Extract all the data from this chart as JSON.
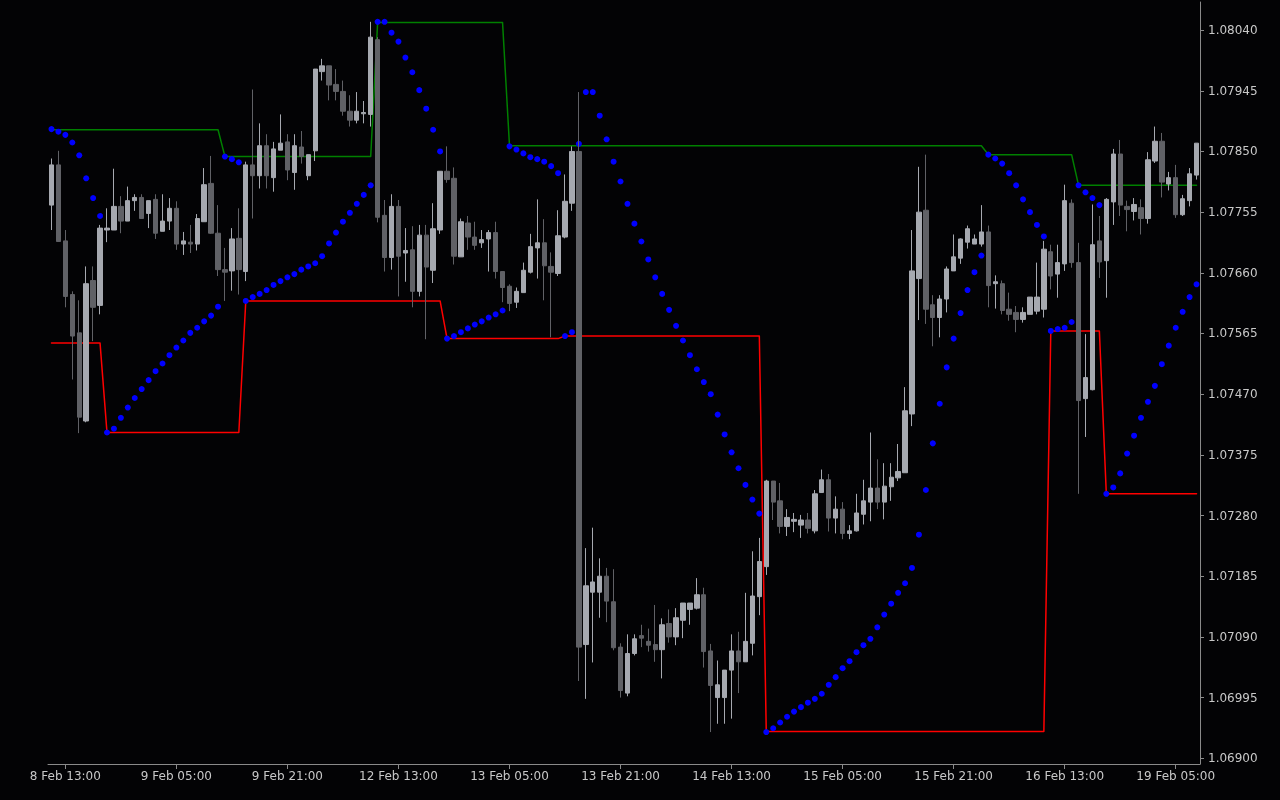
{
  "chart_data": {
    "type": "candlestick",
    "categories": [
      null,
      null,
      "8 Feb 13:00",
      null,
      null,
      null,
      null,
      null,
      null,
      null,
      null,
      null,
      null,
      null,
      null,
      null,
      null,
      null,
      "9 Feb 05:00",
      null,
      null,
      null,
      null,
      null,
      null,
      null,
      null,
      null,
      null,
      null,
      null,
      null,
      null,
      null,
      "9 Feb 21:00",
      null,
      null,
      null,
      null,
      null,
      null,
      null,
      null,
      null,
      null,
      null,
      null,
      null,
      null,
      null,
      "12 Feb 13:00",
      null,
      null,
      null,
      null,
      null,
      null,
      null,
      null,
      null,
      null,
      null,
      null,
      null,
      null,
      null,
      "13 Feb 05:00",
      null,
      null,
      null,
      null,
      null,
      null,
      null,
      null,
      null,
      null,
      null,
      null,
      null,
      null,
      null,
      "13 Feb 21:00",
      null,
      null,
      null,
      null,
      null,
      null,
      null,
      null,
      null,
      null,
      null,
      null,
      null,
      null,
      null,
      "14 Feb 13:00",
      null,
      null,
      null,
      null,
      null,
      null,
      null,
      null,
      null,
      null,
      null,
      null,
      null,
      null,
      null,
      "15 Feb 05:00",
      null,
      null,
      null,
      null,
      null,
      null,
      null,
      null,
      null,
      null,
      null,
      null,
      null,
      null,
      null,
      "15 Feb 21:00",
      null,
      null,
      null,
      null,
      null,
      null,
      null,
      null,
      null,
      null,
      null,
      null,
      null,
      null,
      null,
      "16 Feb 13:00",
      null,
      null,
      null,
      null,
      null,
      null,
      null,
      null,
      null,
      null,
      null,
      null,
      null,
      null,
      null,
      "19 Feb 05:00",
      null,
      null,
      null
    ],
    "ylim": [
      1.06891,
      1.08084
    ],
    "yticks": [
      {
        "value": 1.069,
        "label": "1.06900"
      },
      {
        "value": 1.06995,
        "label": "1.06995"
      },
      {
        "value": 1.0709,
        "label": "1.07090"
      },
      {
        "value": 1.07185,
        "label": "1.07185"
      },
      {
        "value": 1.0728,
        "label": "1.07280"
      },
      {
        "value": 1.07375,
        "label": "1.07375"
      },
      {
        "value": 1.0747,
        "label": "1.07470"
      },
      {
        "value": 1.07565,
        "label": "1.07565"
      },
      {
        "value": 1.0766,
        "label": "1.07660"
      },
      {
        "value": 1.07755,
        "label": "1.07755"
      },
      {
        "value": 1.0785,
        "label": "1.07850"
      },
      {
        "value": 1.07945,
        "label": "1.07945"
      },
      {
        "value": 1.0804,
        "label": "1.08040"
      }
    ],
    "series": [
      {
        "type": "line",
        "color": "#008000",
        "marker": "none",
        "values": [
          1.07884,
          1.07884,
          1.07884,
          1.07884,
          1.07884,
          1.07884,
          1.07884,
          1.07884,
          1.07884,
          1.07884,
          1.07884,
          1.07884,
          1.07884,
          1.07884,
          1.07884,
          1.07884,
          1.07884,
          1.07884,
          1.07884,
          1.07884,
          1.07884,
          1.07884,
          1.07884,
          1.07884,
          1.07884,
          1.07842,
          1.07842,
          1.07842,
          1.07842,
          1.07842,
          1.07842,
          1.07842,
          1.07842,
          1.07842,
          1.07842,
          1.07842,
          1.07842,
          1.07842,
          1.07842,
          1.07842,
          1.07842,
          1.07842,
          1.07842,
          1.07842,
          1.07842,
          1.07842,
          1.07842,
          1.08052,
          1.08052,
          1.08052,
          1.08052,
          1.08052,
          1.08052,
          1.08052,
          1.08052,
          1.08052,
          1.08052,
          1.08052,
          1.08052,
          1.08052,
          1.08052,
          1.08052,
          1.08052,
          1.08052,
          1.08052,
          1.08052,
          1.07859,
          1.07859,
          1.07859,
          1.07859,
          1.07859,
          1.07859,
          1.07859,
          1.07859,
          1.07859,
          1.07859,
          1.07859,
          1.07859,
          1.07859,
          1.07859,
          1.07859,
          1.07859,
          1.07859,
          1.07859,
          1.07859,
          1.07859,
          1.07859,
          1.07859,
          1.07859,
          1.07859,
          1.07859,
          1.07859,
          1.07859,
          1.07859,
          1.07859,
          1.07859,
          1.07859,
          1.07859,
          1.07859,
          1.07859,
          1.07859,
          1.07859,
          1.07859,
          1.07859,
          1.07859,
          1.07859,
          1.07859,
          1.07859,
          1.07859,
          1.07859,
          1.07859,
          1.07859,
          1.07859,
          1.07859,
          1.07859,
          1.07859,
          1.07859,
          1.07859,
          1.07859,
          1.07859,
          1.07859,
          1.07859,
          1.07859,
          1.07859,
          1.07859,
          1.07859,
          1.07859,
          1.07859,
          1.07859,
          1.07859,
          1.07859,
          1.07859,
          1.07859,
          1.07859,
          1.07859,
          1.07845,
          1.07845,
          1.07845,
          1.07845,
          1.07845,
          1.07845,
          1.07845,
          1.07845,
          1.07845,
          1.07845,
          1.07845,
          1.07845,
          1.07845,
          1.07797,
          1.07797,
          1.07797,
          1.07797,
          1.07797,
          1.07797,
          1.07797,
          1.07797,
          1.07797,
          1.07797,
          1.07797,
          1.07797,
          1.07797,
          1.07797,
          1.07797,
          1.07797,
          1.07797,
          1.07797
        ]
      },
      {
        "type": "line",
        "color": "#ff0000",
        "marker": "none",
        "values": [
          1.0755,
          1.0755,
          1.0755,
          1.0755,
          1.0755,
          1.0755,
          1.0755,
          1.0755,
          1.0741,
          1.0741,
          1.0741,
          1.0741,
          1.0741,
          1.0741,
          1.0741,
          1.0741,
          1.0741,
          1.0741,
          1.0741,
          1.0741,
          1.0741,
          1.0741,
          1.0741,
          1.0741,
          1.0741,
          1.0741,
          1.0741,
          1.0741,
          1.07616,
          1.07616,
          1.07616,
          1.07616,
          1.07616,
          1.07616,
          1.07616,
          1.07616,
          1.07616,
          1.07616,
          1.07616,
          1.07616,
          1.07616,
          1.07616,
          1.07616,
          1.07616,
          1.07616,
          1.07616,
          1.07616,
          1.07616,
          1.07616,
          1.07616,
          1.07616,
          1.07616,
          1.07616,
          1.07616,
          1.07616,
          1.07616,
          1.07616,
          1.07557,
          1.07557,
          1.07557,
          1.07557,
          1.07557,
          1.07557,
          1.07557,
          1.07557,
          1.07557,
          1.07557,
          1.07557,
          1.07557,
          1.07557,
          1.07557,
          1.07557,
          1.07557,
          1.07557,
          1.07561,
          1.07561,
          1.07561,
          1.07561,
          1.07561,
          1.07561,
          1.07561,
          1.07561,
          1.07561,
          1.07561,
          1.07561,
          1.07561,
          1.07561,
          1.07561,
          1.07561,
          1.07561,
          1.07561,
          1.07561,
          1.07561,
          1.07561,
          1.07561,
          1.07561,
          1.07561,
          1.07561,
          1.07561,
          1.07561,
          1.07561,
          1.07561,
          1.07561,
          1.06942,
          1.06942,
          1.06942,
          1.06942,
          1.06942,
          1.06942,
          1.06942,
          1.06942,
          1.06942,
          1.06942,
          1.06942,
          1.06942,
          1.06942,
          1.06942,
          1.06942,
          1.06942,
          1.06942,
          1.06942,
          1.06942,
          1.06942,
          1.06942,
          1.06942,
          1.06942,
          1.06942,
          1.06942,
          1.06942,
          1.06942,
          1.06942,
          1.06942,
          1.06942,
          1.06942,
          1.06942,
          1.06942,
          1.06942,
          1.06942,
          1.06942,
          1.06942,
          1.06942,
          1.06942,
          1.06942,
          1.06942,
          1.07569,
          1.07569,
          1.07569,
          1.07569,
          1.07569,
          1.07569,
          1.07569,
          1.07569,
          1.07314,
          1.07314,
          1.07314,
          1.07314,
          1.07314,
          1.07314,
          1.07314,
          1.07314,
          1.07314,
          1.07314,
          1.07314,
          1.07314,
          1.07314,
          1.07314
        ]
      },
      {
        "type": "scatter",
        "color": "#0000ff",
        "marker": "circle",
        "values": [
          1.07885,
          1.07881,
          1.07876,
          1.07864,
          1.07844,
          1.07808,
          1.07777,
          1.07749,
          1.0741,
          1.07416,
          1.07433,
          1.07449,
          1.07464,
          1.07478,
          1.07492,
          1.07506,
          1.07518,
          1.07531,
          1.07543,
          1.07554,
          1.07566,
          1.07574,
          1.07584,
          1.07593,
          1.07607,
          1.07842,
          1.07838,
          1.07833,
          1.07616,
          1.07622,
          1.07627,
          1.07633,
          1.07641,
          1.07647,
          1.07653,
          1.07658,
          1.07665,
          1.0767,
          1.07675,
          1.07686,
          1.07706,
          1.07723,
          1.0774,
          1.07754,
          1.07768,
          1.07782,
          1.07797,
          1.08053,
          1.08053,
          1.08036,
          1.08022,
          1.07997,
          1.07974,
          1.07946,
          1.07917,
          1.07884,
          1.0785,
          1.07557,
          1.07561,
          1.07567,
          1.07573,
          1.07579,
          1.07584,
          1.0759,
          1.07595,
          1.07601,
          1.07858,
          1.07853,
          1.07847,
          1.07841,
          1.07838,
          1.07834,
          1.07827,
          1.07816,
          1.07561,
          1.07567,
          1.07862,
          1.07943,
          1.07943,
          1.07906,
          1.07869,
          1.07834,
          1.07803,
          1.07768,
          1.07737,
          1.07709,
          1.07681,
          1.07653,
          1.07627,
          1.07602,
          1.07577,
          1.07554,
          1.07531,
          1.07509,
          1.07489,
          1.0747,
          1.07438,
          1.07407,
          1.07379,
          1.07354,
          1.07328,
          1.07305,
          1.07283,
          1.06941,
          1.06947,
          1.06956,
          1.06965,
          1.06973,
          1.0698,
          1.06987,
          1.06993,
          1.07001,
          1.07015,
          1.07027,
          1.07041,
          1.07052,
          1.07066,
          1.07077,
          1.07087,
          1.07105,
          1.07125,
          1.07142,
          1.07159,
          1.07174,
          1.07198,
          1.0725,
          1.0732,
          1.07393,
          1.07455,
          1.07512,
          1.07557,
          1.07597,
          1.07633,
          1.07661,
          1.07687,
          1.07845,
          1.07839,
          1.07831,
          1.07816,
          1.07797,
          1.07775,
          1.07755,
          1.07735,
          1.07717,
          1.07569,
          1.07572,
          1.07574,
          1.07583,
          1.07797,
          1.07786,
          1.07777,
          1.07766,
          1.07314,
          1.07324,
          1.07346,
          1.07377,
          1.07405,
          1.07433,
          1.07458,
          1.07483,
          1.07517,
          1.07546,
          1.07574,
          1.07599,
          1.07622,
          1.07642
        ]
      },
      {
        "type": "candlestick",
        "colors": [
          "#a6a9b0",
          "#606166",
          "#606166",
          "#606166",
          "#606166",
          "#a6a9b0",
          "#606166",
          "#a6a9b0",
          "#a6a9b0",
          "#a6a9b0",
          "#606166",
          "#a6a9b0",
          "#a6a9b0",
          "#606166",
          "#a6a9b0",
          "#606166",
          "#a6a9b0",
          "#a6a9b0",
          "#606166",
          "#a6a9b0",
          "#606166",
          "#a6a9b0",
          "#a6a9b0",
          "#606166",
          "#606166",
          "#606166",
          "#a6a9b0",
          "#606166",
          "#a6a9b0",
          "#606166",
          "#a6a9b0",
          "#606166",
          "#a6a9b0",
          "#a6a9b0",
          "#606166",
          "#a6a9b0",
          "#606166",
          "#a6a9b0",
          "#a6a9b0",
          "#a6a9b0",
          "#606166",
          "#606166",
          "#606166",
          "#606166",
          "#a6a9b0",
          "#a6a9b0",
          "#a6a9b0",
          "#606166",
          "#606166",
          "#a6a9b0",
          "#606166",
          "#a6a9b0",
          "#606166",
          "#a6a9b0",
          "#606166",
          "#a6a9b0",
          "#a6a9b0",
          "#606166",
          "#606166",
          "#a6a9b0",
          "#606166",
          "#606166",
          "#a6a9b0",
          "#a6a9b0",
          "#606166",
          "#606166",
          "#606166",
          "#a6a9b0",
          "#a6a9b0",
          "#a6a9b0",
          "#a6a9b0",
          "#606166",
          "#606166",
          "#a6a9b0",
          "#a6a9b0",
          "#a6a9b0",
          "#606166",
          "#a6a9b0",
          "#a6a9b0",
          "#a6a9b0",
          "#606166",
          "#606166",
          "#606166",
          "#a6a9b0",
          "#a6a9b0",
          "#606166",
          "#606166",
          "#606166",
          "#a6a9b0",
          "#606166",
          "#a6a9b0",
          "#a6a9b0",
          "#a6a9b0",
          "#a6a9b0",
          "#606166",
          "#606166",
          "#a6a9b0",
          "#a6a9b0",
          "#a6a9b0",
          "#606166",
          "#a6a9b0",
          "#a6a9b0",
          "#a6a9b0",
          "#a6a9b0",
          "#606166",
          "#606166",
          "#a6a9b0",
          "#a6a9b0",
          "#a6a9b0",
          "#606166",
          "#a6a9b0",
          "#a6a9b0",
          "#606166",
          "#a6a9b0",
          "#606166",
          "#a6a9b0",
          "#a6a9b0",
          "#a6a9b0",
          "#a6a9b0",
          "#606166",
          "#a6a9b0",
          "#a6a9b0",
          "#a6a9b0",
          "#a6a9b0",
          "#a6a9b0",
          "#a6a9b0",
          "#606166",
          "#606166",
          "#a6a9b0",
          "#a6a9b0",
          "#a6a9b0",
          "#a6a9b0",
          "#a6a9b0",
          "#a6a9b0",
          "#a6a9b0",
          "#606166",
          "#a6a9b0",
          "#606166",
          "#606166",
          "#606166",
          "#a6a9b0",
          "#a6a9b0",
          "#a6a9b0",
          "#a6a9b0",
          "#606166",
          "#a6a9b0",
          "#a6a9b0",
          "#606166",
          "#606166",
          "#a6a9b0",
          "#a6a9b0",
          "#606166",
          "#a6a9b0",
          "#a6a9b0",
          "#606166",
          "#606166",
          "#a6a9b0",
          "#606166",
          "#a6a9b0",
          "#a6a9b0",
          "#606166",
          "#a6a9b0",
          "#606166",
          "#a6a9b0",
          "#a6a9b0",
          "#a6a9b0"
        ],
        "ohlc": [
          [
            1.07766,
            1.07839,
            1.07727,
            1.07829
          ],
          [
            1.07829,
            1.07851,
            1.07709,
            1.07709
          ],
          [
            1.0771,
            1.07727,
            1.07606,
            1.07623
          ],
          [
            1.07626,
            1.07631,
            1.07493,
            1.07561
          ],
          [
            1.07566,
            1.07617,
            1.07409,
            1.07434
          ],
          [
            1.07428,
            1.0767,
            1.07426,
            1.07643
          ],
          [
            1.07648,
            1.0767,
            1.07553,
            1.07606
          ],
          [
            1.07609,
            1.07735,
            1.07595,
            1.0773
          ],
          [
            1.07727,
            1.07761,
            1.07708,
            1.0773
          ],
          [
            1.07727,
            1.07823,
            1.07727,
            1.07764
          ],
          [
            1.07764,
            1.0778,
            1.07722,
            1.07741
          ],
          [
            1.07741,
            1.07795,
            1.07741,
            1.07773
          ],
          [
            1.07773,
            1.07783,
            1.07757,
            1.07778
          ],
          [
            1.07778,
            1.07783,
            1.07745,
            1.07745
          ],
          [
            1.07753,
            1.07773,
            1.0773,
            1.07773
          ],
          [
            1.07775,
            1.07783,
            1.07713,
            1.07722
          ],
          [
            1.07725,
            1.07783,
            1.07725,
            1.07741
          ],
          [
            1.07741,
            1.07777,
            1.07727,
            1.07761
          ],
          [
            1.07761,
            1.07772,
            1.07696,
            1.07705
          ],
          [
            1.07705,
            1.07724,
            1.07688,
            1.0771
          ],
          [
            1.07708,
            1.07735,
            1.07691,
            1.07705
          ],
          [
            1.07705,
            1.07752,
            1.07695,
            1.07745
          ],
          [
            1.0774,
            1.07824,
            1.0774,
            1.07798
          ],
          [
            1.078,
            1.07843,
            1.07721,
            1.07722
          ],
          [
            1.07722,
            1.07766,
            1.07655,
            1.07665
          ],
          [
            1.07665,
            1.07699,
            1.07616,
            1.07661
          ],
          [
            1.07663,
            1.0773,
            1.07632,
            1.07713
          ],
          [
            1.07714,
            1.07761,
            1.07626,
            1.07665
          ],
          [
            1.07662,
            1.07834,
            1.07647,
            1.07829
          ],
          [
            1.07829,
            1.07947,
            1.07745,
            1.07812
          ],
          [
            1.07812,
            1.07894,
            1.07792,
            1.07859
          ],
          [
            1.07859,
            1.07877,
            1.07792,
            1.07812
          ],
          [
            1.07809,
            1.07865,
            1.07787,
            1.07854
          ],
          [
            1.07852,
            1.07908,
            1.07852,
            1.07863
          ],
          [
            1.07865,
            1.07877,
            1.07805,
            1.07821
          ],
          [
            1.07817,
            1.07877,
            1.0779,
            1.07859
          ],
          [
            1.07857,
            1.07882,
            1.07831,
            1.07842
          ],
          [
            1.07812,
            1.07845,
            1.07805,
            1.07845
          ],
          [
            1.07851,
            1.07979,
            1.07835,
            1.07979
          ],
          [
            1.07975,
            1.07995,
            1.07961,
            1.07984
          ],
          [
            1.07984,
            1.07984,
            1.0793,
            1.07954
          ],
          [
            1.07955,
            1.07979,
            1.0793,
            1.07944
          ],
          [
            1.07944,
            1.07961,
            1.07906,
            1.07913
          ],
          [
            1.07913,
            1.07938,
            1.07889,
            1.07899
          ],
          [
            1.07899,
            1.07943,
            1.07894,
            1.07913
          ],
          [
            1.07909,
            1.07929,
            1.07894,
            1.07911
          ],
          [
            1.07908,
            1.08053,
            1.07889,
            1.08029
          ],
          [
            1.08025,
            1.08029,
            1.07739,
            1.07747
          ],
          [
            1.0775,
            1.07774,
            1.07662,
            1.07684
          ],
          [
            1.07684,
            1.07783,
            1.07665,
            1.07764
          ],
          [
            1.07764,
            1.07774,
            1.07623,
            1.07686
          ],
          [
            1.07691,
            1.0773,
            1.07646,
            1.07695
          ],
          [
            1.07696,
            1.07733,
            1.07606,
            1.07631
          ],
          [
            1.07631,
            1.07735,
            1.07623,
            1.07719
          ],
          [
            1.07719,
            1.07735,
            1.07556,
            1.07669
          ],
          [
            1.07664,
            1.07769,
            1.07644,
            1.07729
          ],
          [
            1.07727,
            1.07819,
            1.07721,
            1.07819
          ],
          [
            1.07819,
            1.07858,
            1.07801,
            1.07806
          ],
          [
            1.07808,
            1.07825,
            1.07673,
            1.07686
          ],
          [
            1.07685,
            1.07745,
            1.07685,
            1.0774
          ],
          [
            1.07738,
            1.07749,
            1.07696,
            1.07716
          ],
          [
            1.07716,
            1.0774,
            1.07696,
            1.07703
          ],
          [
            1.07707,
            1.07727,
            1.07699,
            1.07712
          ],
          [
            1.07713,
            1.07727,
            1.07662,
            1.07723
          ],
          [
            1.07723,
            1.0774,
            1.07651,
            1.07662
          ],
          [
            1.07662,
            1.07662,
            1.07614,
            1.07637
          ],
          [
            1.07639,
            1.07642,
            1.076,
            1.07612
          ],
          [
            1.07614,
            1.07637,
            1.07605,
            1.07631
          ],
          [
            1.07629,
            1.07676,
            1.07629,
            1.07664
          ],
          [
            1.07661,
            1.07721,
            1.07659,
            1.07701
          ],
          [
            1.07699,
            1.07775,
            1.07651,
            1.07707
          ],
          [
            1.07707,
            1.07744,
            1.07617,
            1.07671
          ],
          [
            1.0767,
            1.07692,
            1.07559,
            1.07661
          ],
          [
            1.07659,
            1.07758,
            1.07655,
            1.07718
          ],
          [
            1.07716,
            1.07814,
            1.07714,
            1.07772
          ],
          [
            1.07769,
            1.07858,
            1.07757,
            1.0785
          ],
          [
            1.0785,
            1.07943,
            1.07021,
            1.07074
          ],
          [
            1.07078,
            1.07229,
            1.06993,
            1.0717
          ],
          [
            1.0716,
            1.07261,
            1.0705,
            1.07176
          ],
          [
            1.0716,
            1.07213,
            1.0712,
            1.07185
          ],
          [
            1.07185,
            1.07198,
            1.07113,
            1.07146
          ],
          [
            1.07145,
            1.07196,
            1.07069,
            1.07073
          ],
          [
            1.07074,
            1.0708,
            1.06995,
            1.07006
          ],
          [
            1.07002,
            1.07094,
            1.06997,
            1.07064
          ],
          [
            1.07064,
            1.07094,
            1.07061,
            1.07087
          ],
          [
            1.07092,
            1.07109,
            1.07074,
            1.07088
          ],
          [
            1.07083,
            1.07103,
            1.07067,
            1.07077
          ],
          [
            1.07078,
            1.0714,
            1.07051,
            1.0707
          ],
          [
            1.0707,
            1.07119,
            1.07025,
            1.07109
          ],
          [
            1.07111,
            1.07133,
            1.07081,
            1.0709
          ],
          [
            1.0709,
            1.07135,
            1.07077,
            1.0712
          ],
          [
            1.07116,
            1.07143,
            1.07088,
            1.07143
          ],
          [
            1.07133,
            1.07143,
            1.07109,
            1.07143
          ],
          [
            1.07135,
            1.07182,
            1.07133,
            1.07156
          ],
          [
            1.07156,
            1.07167,
            1.07042,
            1.07067
          ],
          [
            1.07068,
            1.07079,
            1.06941,
            1.07014
          ],
          [
            1.06995,
            1.07053,
            1.06954,
            1.07015
          ],
          [
            1.06995,
            1.07038,
            1.06954,
            1.07038
          ],
          [
            1.07038,
            1.07094,
            1.06962,
            1.07068
          ],
          [
            1.07068,
            1.07098,
            1.07002,
            1.07051
          ],
          [
            1.07051,
            1.07159,
            1.07051,
            1.07083
          ],
          [
            1.0708,
            1.07224,
            1.07061,
            1.07154
          ],
          [
            1.07153,
            1.07245,
            1.07124,
            1.07208
          ],
          [
            1.072,
            1.07336,
            1.07187,
            1.07334
          ],
          [
            1.07334,
            1.07334,
            1.07273,
            1.07301
          ],
          [
            1.07303,
            1.07331,
            1.07252,
            1.07263
          ],
          [
            1.07263,
            1.0729,
            1.07248,
            1.07277
          ],
          [
            1.07271,
            1.07284,
            1.07254,
            1.07274
          ],
          [
            1.07265,
            1.07281,
            1.07245,
            1.07273
          ],
          [
            1.07273,
            1.07284,
            1.07252,
            1.0726
          ],
          [
            1.07256,
            1.0732,
            1.07252,
            1.07314
          ],
          [
            1.07316,
            1.07352,
            1.07316,
            1.07336
          ],
          [
            1.07336,
            1.07345,
            1.07255,
            1.07276
          ],
          [
            1.07276,
            1.0731,
            1.07252,
            1.0729
          ],
          [
            1.0729,
            1.07301,
            1.07243,
            1.07252
          ],
          [
            1.07252,
            1.07265,
            1.07243,
            1.07256
          ],
          [
            1.07256,
            1.07314,
            1.07255,
            1.07284
          ],
          [
            1.07282,
            1.07336,
            1.07266,
            1.07303
          ],
          [
            1.07301,
            1.0741,
            1.07271,
            1.07323
          ],
          [
            1.07323,
            1.07368,
            1.0729,
            1.07301
          ],
          [
            1.07301,
            1.07362,
            1.07274,
            1.07326
          ],
          [
            1.07325,
            1.07362,
            1.07303,
            1.0734
          ],
          [
            1.07339,
            1.07392,
            1.07334,
            1.07349
          ],
          [
            1.07347,
            1.07481,
            1.07347,
            1.07444
          ],
          [
            1.07439,
            1.07727,
            1.0742,
            1.07663
          ],
          [
            1.07651,
            1.07826,
            1.07586,
            1.07755
          ],
          [
            1.07758,
            1.07845,
            1.0758,
            1.07603
          ],
          [
            1.0761,
            1.07625,
            1.07545,
            1.0759
          ],
          [
            1.0759,
            1.07625,
            1.07559,
            1.07619
          ],
          [
            1.07619,
            1.0767,
            1.07598,
            1.07666
          ],
          [
            1.07663,
            1.0772,
            1.07663,
            1.07685
          ],
          [
            1.07683,
            1.07714,
            1.07674,
            1.07713
          ],
          [
            1.07708,
            1.07734,
            1.07698,
            1.07729
          ],
          [
            1.07705,
            1.0772,
            1.07705,
            1.07713
          ],
          [
            1.07705,
            1.07766,
            1.07701,
            1.07724
          ],
          [
            1.07724,
            1.07734,
            1.07606,
            1.0764
          ],
          [
            1.07643,
            1.07656,
            1.07604,
            1.07646
          ],
          [
            1.07643,
            1.07648,
            1.07595,
            1.07601
          ],
          [
            1.07603,
            1.07629,
            1.07585,
            1.07595
          ],
          [
            1.07598,
            1.07608,
            1.07567,
            1.07587
          ],
          [
            1.07587,
            1.07606,
            1.07582,
            1.07598
          ],
          [
            1.07595,
            1.07622,
            1.07595,
            1.07622
          ],
          [
            1.076,
            1.07676,
            1.07595,
            1.07622
          ],
          [
            1.07603,
            1.0771,
            1.0759,
            1.07697
          ],
          [
            1.07693,
            1.07704,
            1.07634,
            1.07655
          ],
          [
            1.07658,
            1.07704,
            1.07621,
            1.07676
          ],
          [
            1.07674,
            1.07798,
            1.07663,
            1.07773
          ],
          [
            1.07769,
            1.07775,
            1.07668,
            1.07676
          ],
          [
            1.07676,
            1.07707,
            1.07314,
            1.0746
          ],
          [
            1.07463,
            1.07564,
            1.07403,
            1.07496
          ],
          [
            1.07477,
            1.07767,
            1.07476,
            1.07704
          ],
          [
            1.0771,
            1.07749,
            1.07652,
            1.07677
          ],
          [
            1.07679,
            1.07777,
            1.07621,
            1.07775
          ],
          [
            1.07771,
            1.07854,
            1.07735,
            1.07846
          ],
          [
            1.07846,
            1.07868,
            1.07749,
            1.07766
          ],
          [
            1.07764,
            1.07773,
            1.07725,
            1.07759
          ],
          [
            1.07756,
            1.07777,
            1.07742,
            1.07767
          ],
          [
            1.07762,
            1.07775,
            1.0772,
            1.07745
          ],
          [
            1.07745,
            1.07849,
            1.07737,
            1.07837
          ],
          [
            1.07835,
            1.07889,
            1.07832,
            1.07866
          ],
          [
            1.07866,
            1.07879,
            1.07778,
            1.07802
          ],
          [
            1.07799,
            1.07818,
            1.07789,
            1.07809
          ],
          [
            1.07809,
            1.07829,
            1.07746,
            1.07751
          ],
          [
            1.07751,
            1.07782,
            1.07749,
            1.07776
          ],
          [
            1.07773,
            1.07824,
            1.07764,
            1.07815
          ],
          [
            1.07813,
            1.07863,
            1.07806,
            1.07863
          ]
        ]
      }
    ]
  }
}
